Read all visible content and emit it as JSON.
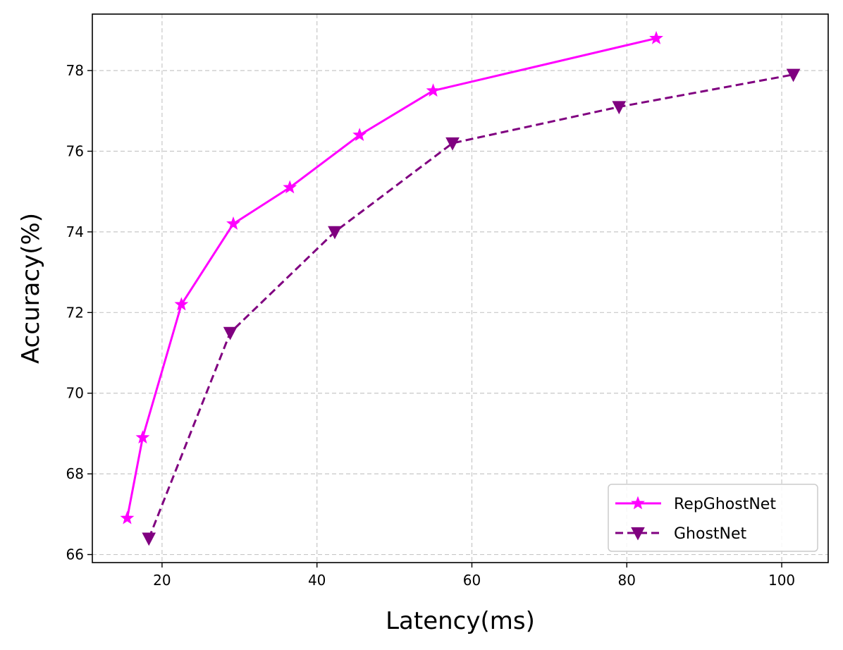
{
  "chart_data": {
    "type": "line",
    "xlabel": "Latency(ms)",
    "ylabel": "Accuracy(%)",
    "xlim": [
      11,
      106
    ],
    "ylim": [
      65.8,
      79.4
    ],
    "xticks": [
      20,
      40,
      60,
      80,
      100
    ],
    "yticks": [
      66,
      68,
      70,
      72,
      74,
      76,
      78
    ],
    "grid": true,
    "legend_position": "lower-right",
    "series": [
      {
        "name": "RepGhostNet",
        "color": "#ff00ff",
        "line_style": "solid",
        "marker": "star",
        "x": [
          15.5,
          17.5,
          22.5,
          29.2,
          36.5,
          45.5,
          55.0,
          83.8
        ],
        "y": [
          66.9,
          68.9,
          72.2,
          74.2,
          75.1,
          76.4,
          77.5,
          78.8
        ]
      },
      {
        "name": "GhostNet",
        "color": "#800080",
        "line_style": "dashed",
        "marker": "triangle-down",
        "x": [
          18.3,
          28.8,
          42.3,
          57.5,
          79.0,
          101.5
        ],
        "y": [
          66.4,
          71.5,
          74.0,
          76.2,
          77.1,
          77.9
        ]
      }
    ]
  }
}
